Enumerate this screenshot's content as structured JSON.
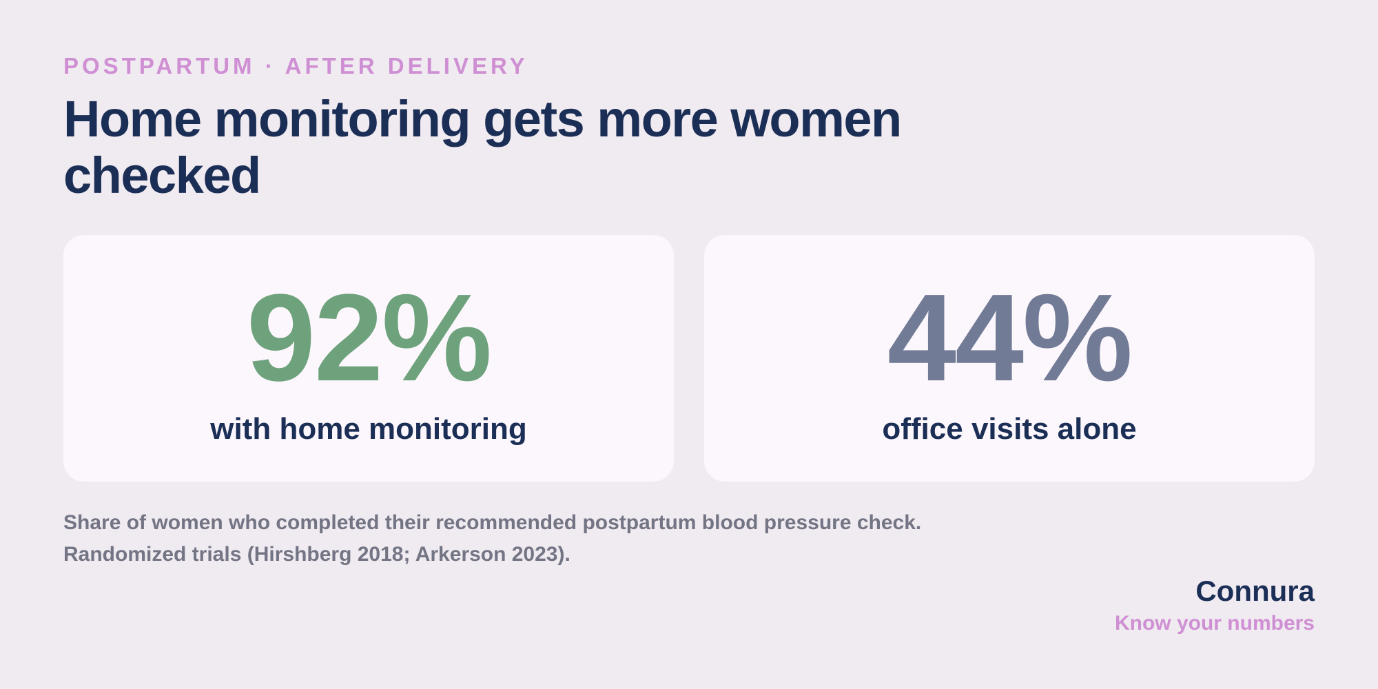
{
  "header": {
    "eyebrow": "POSTPARTUM · AFTER DELIVERY",
    "title": "Home monitoring gets more women checked"
  },
  "stats": [
    {
      "value": "92%",
      "label": "with home monitoring",
      "color": "#6ea27c"
    },
    {
      "value": "44%",
      "label": "office visits alone",
      "color": "#727b96"
    }
  ],
  "footnote": {
    "line1": "Share of women who completed their recommended postpartum blood pressure check.",
    "line2": "Randomized trials (Hirshberg 2018; Arkerson 2023)."
  },
  "brand": {
    "name": "Connura",
    "tagline": "Know your numbers"
  },
  "colors": {
    "background": "#f0eaf1",
    "card": "#fcf7fc",
    "navy": "#1b2e55",
    "accent": "#cf8fd3",
    "muted": "#737584"
  }
}
